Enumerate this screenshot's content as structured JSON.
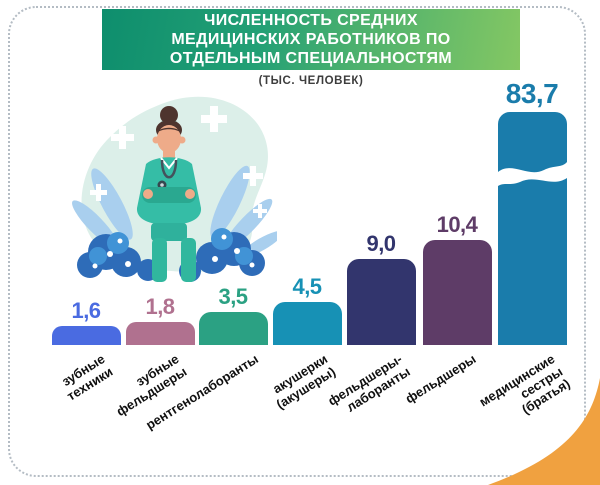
{
  "header": {
    "title_lines": [
      "ЧИСЛЕННОСТЬ СРЕДНИХ",
      "МЕДИЦИНСКИХ РАБОТНИКОВ ПО",
      "ОТДЕЛЬНЫМ СПЕЦИАЛЬНОСТЯМ"
    ],
    "subtitle": "(ТЫС. ЧЕЛОВЕК)",
    "banner_gradient": [
      "#0e8e6d",
      "#84c763"
    ],
    "title_text_color": "#ffffff"
  },
  "chart_data": {
    "type": "bar",
    "title": "ЧИСЛЕННОСТЬ СРЕДНИХ МЕДИЦИНСКИХ РАБОТНИКОВ ПО ОТДЕЛЬНЫМ СПЕЦИАЛЬНОСТЯМ",
    "units": "(ТЫС. ЧЕЛОВЕК)",
    "orientation": "vertical",
    "value_label_position": "above",
    "grid": false,
    "value_axis_visible": false,
    "categories": [
      "зубные техники",
      "зубные фельдшеры",
      "рентгенолаборанты",
      "акушерки (акушеры)",
      "фельдшеры-лаборанты",
      "фельдшеры",
      "медицинские сестры (братья)"
    ],
    "category_display": [
      "зубные\nтехники",
      "зубные\nфельдшеры",
      "рентгенолаборанты",
      "акушерки\n(акушеры)",
      "фельдшеры-\nлаборанты",
      "фельдшеры",
      "медицинские\nсестры\n(братья)"
    ],
    "values": [
      1.6,
      1.8,
      3.5,
      4.5,
      9.0,
      10.4,
      83.7
    ],
    "value_labels": [
      "1,6",
      "1,8",
      "3,5",
      "4,5",
      "9,0",
      "10,4",
      "83,7"
    ],
    "bar_colors": [
      "#4a6be1",
      "#b0718f",
      "#2ba183",
      "#1791b5",
      "#32356d",
      "#5e3c67",
      "#1a7cab"
    ],
    "axis_break_bar": "медицинские сестры (братья)"
  },
  "illustration": {
    "name": "nurse-with-plants-illustration",
    "blob_color": "#dcefe9",
    "scrubs_color": "#35bda6",
    "foliage_colors": [
      "#2e6cb8",
      "#4193d6",
      "#a9cfee"
    ]
  },
  "accents": {
    "corner_color": "#f0a140",
    "border_color": "#b4bcc4"
  }
}
